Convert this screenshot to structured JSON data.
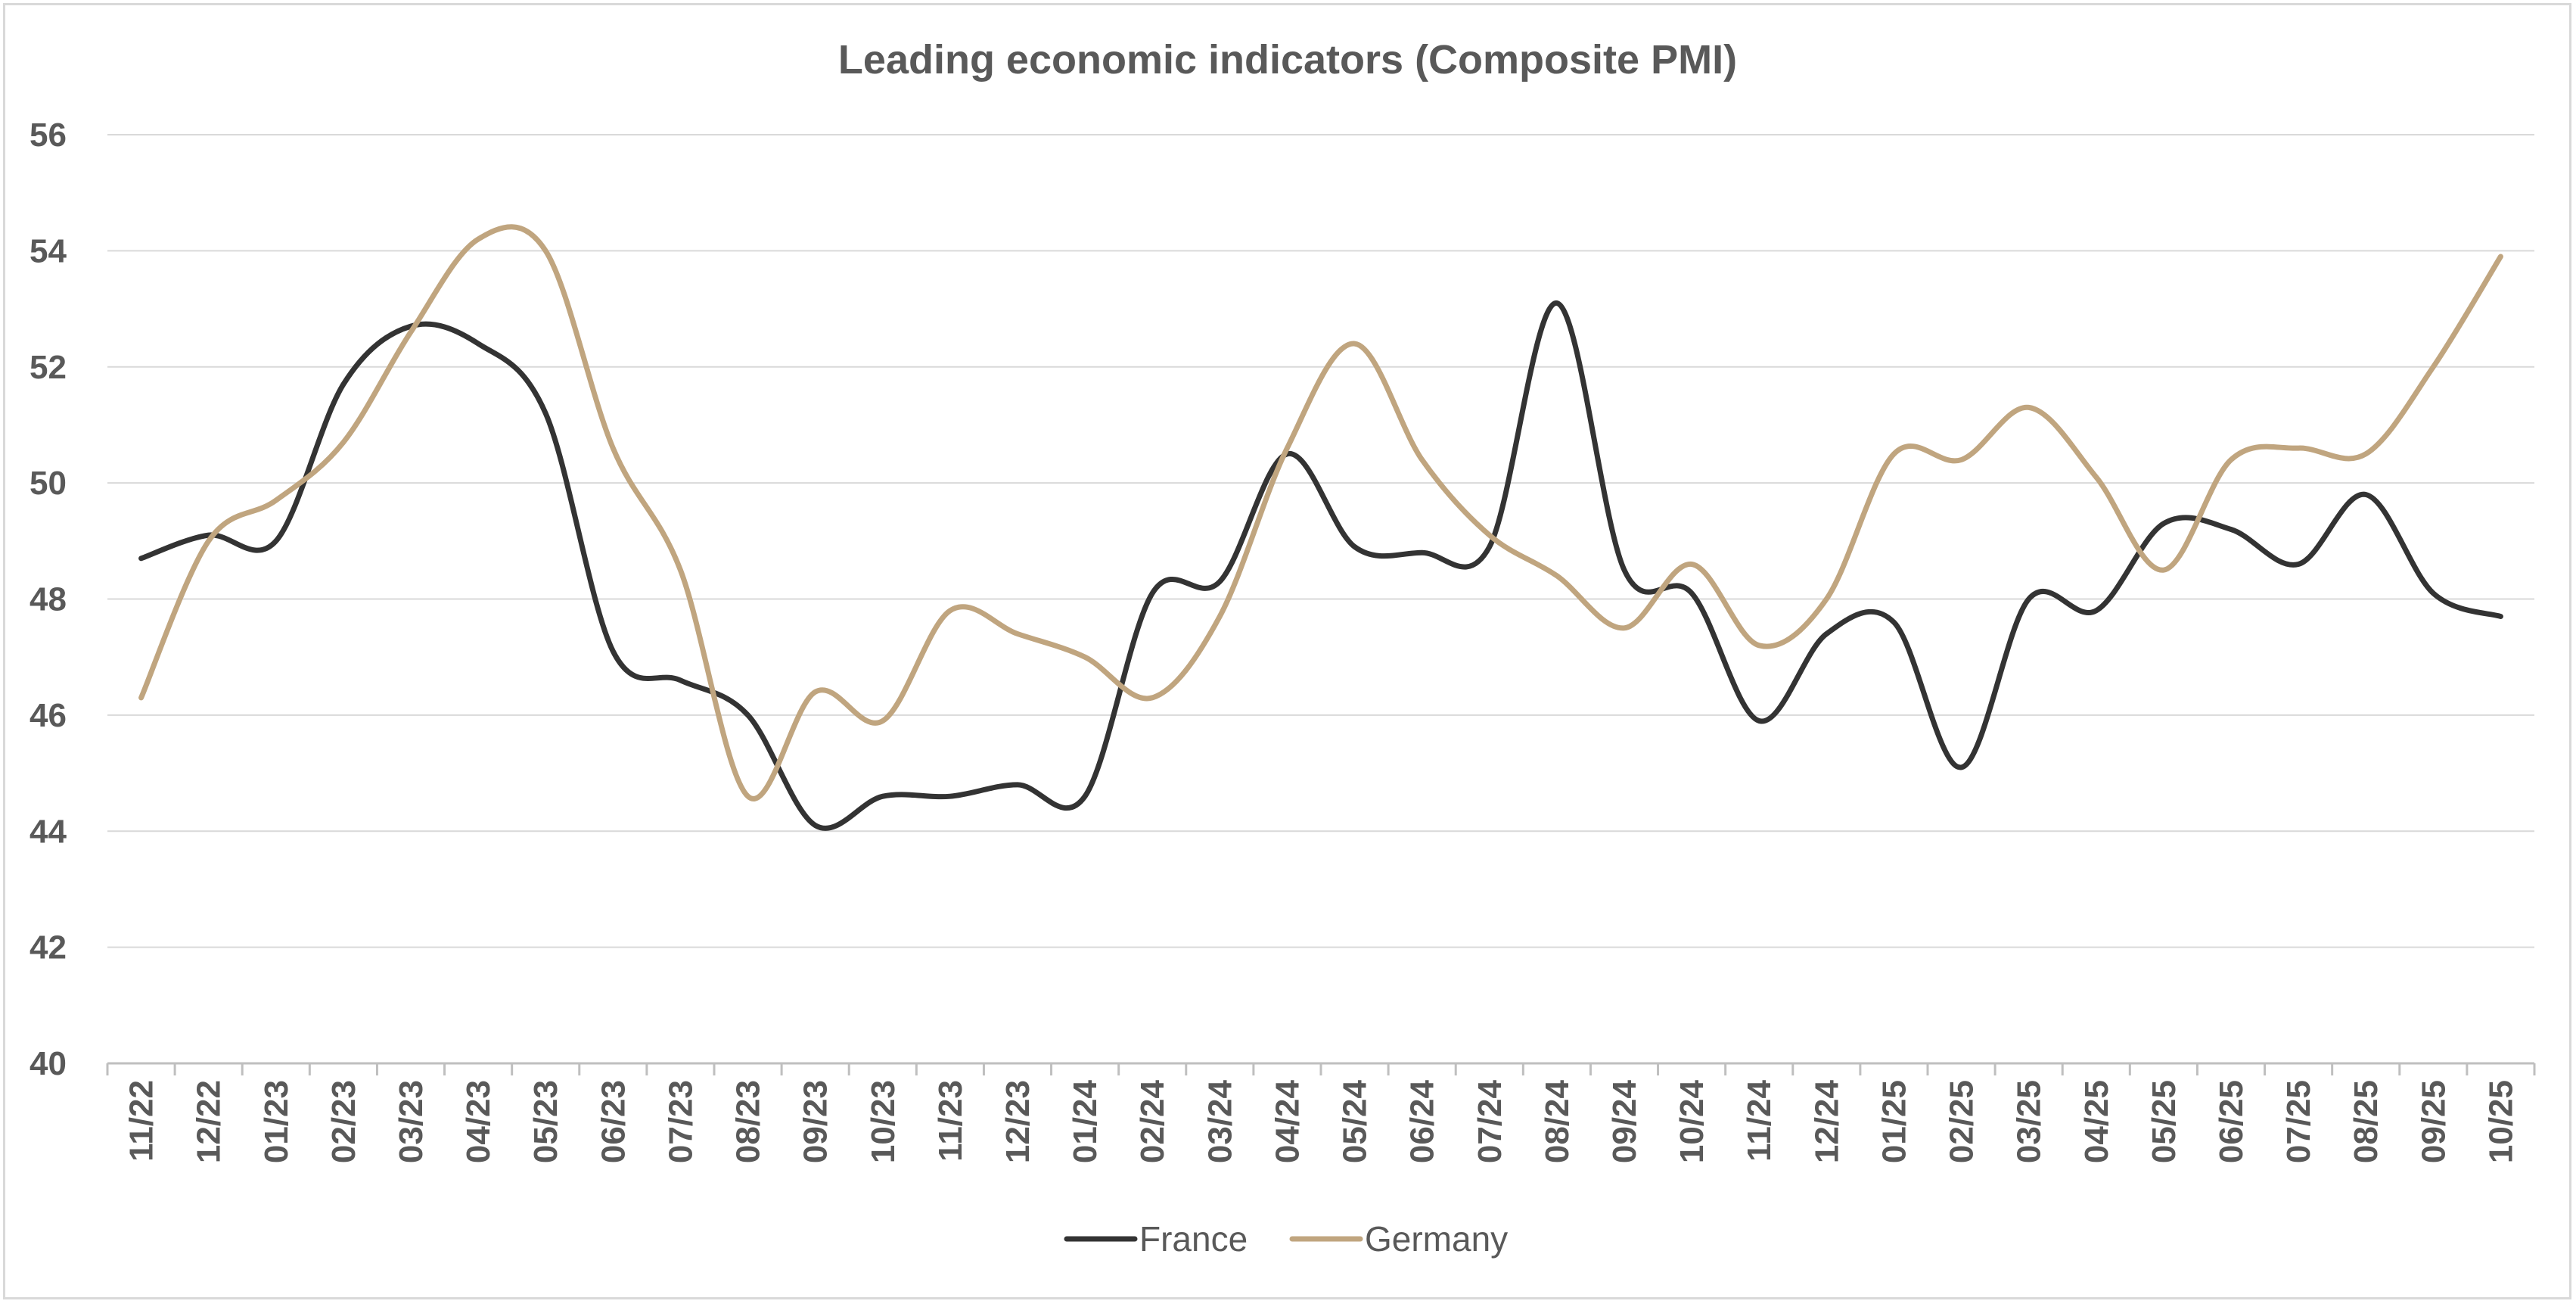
{
  "chart_data": {
    "type": "line",
    "title": "Leading economic indicators (Composite PMI)",
    "xlabel": "",
    "ylabel": "",
    "ylim": [
      40,
      56
    ],
    "yticks": [
      40,
      42,
      44,
      46,
      48,
      50,
      52,
      54,
      56
    ],
    "grid": true,
    "legend_position": "bottom",
    "categories": [
      "11/22",
      "12/22",
      "01/23",
      "02/23",
      "03/23",
      "04/23",
      "05/23",
      "06/23",
      "07/23",
      "08/23",
      "09/23",
      "10/23",
      "11/23",
      "12/23",
      "01/24",
      "02/24",
      "03/24",
      "04/24",
      "05/24",
      "06/24",
      "07/24",
      "08/24",
      "09/24",
      "10/24",
      "11/24",
      "12/24",
      "01/25",
      "02/25",
      "03/25",
      "04/25",
      "05/25",
      "06/25",
      "07/25",
      "08/25",
      "09/25",
      "10/25"
    ],
    "series": [
      {
        "name": "France",
        "color": "#333333",
        "values": [
          48.7,
          49.1,
          49.0,
          51.7,
          52.7,
          52.4,
          51.2,
          47.1,
          46.6,
          46.0,
          44.1,
          44.6,
          44.6,
          44.8,
          44.6,
          48.1,
          48.3,
          50.5,
          48.9,
          48.8,
          48.9,
          53.1,
          48.5,
          48.1,
          45.9,
          47.4,
          47.6,
          45.1,
          48.0,
          47.8,
          49.3,
          49.2,
          48.6,
          49.8,
          48.1,
          47.7
        ]
      },
      {
        "name": "Germany",
        "color": "#c0a57f",
        "values": [
          46.3,
          49.0,
          49.7,
          50.7,
          52.6,
          54.2,
          54.0,
          50.6,
          48.5,
          44.6,
          46.4,
          45.9,
          47.8,
          47.4,
          47.0,
          46.3,
          47.7,
          50.6,
          52.4,
          50.4,
          49.1,
          48.4,
          47.5,
          48.6,
          47.2,
          48.0,
          50.5,
          50.4,
          51.3,
          50.1,
          48.5,
          50.4,
          50.6,
          50.5,
          52.0,
          53.9
        ]
      }
    ]
  }
}
